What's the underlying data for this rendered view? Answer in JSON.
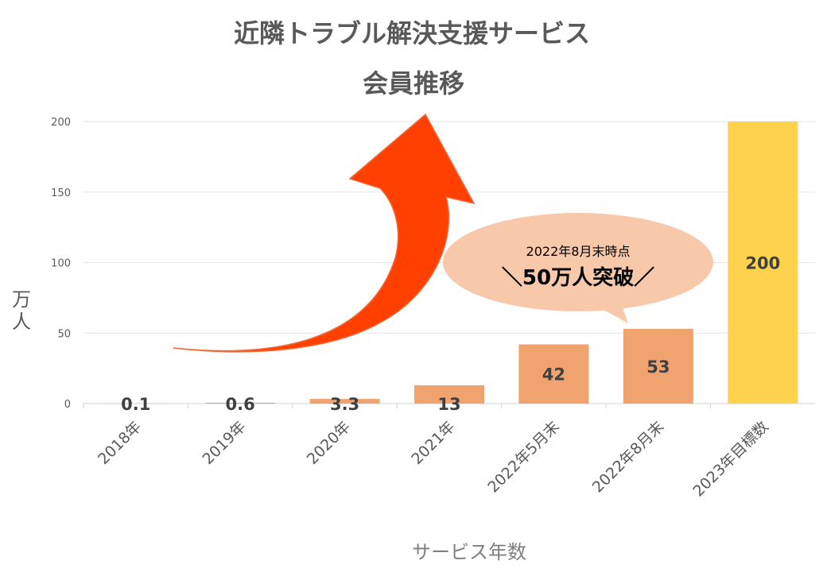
{
  "chart_data": {
    "type": "bar",
    "title_line1": "近隣トラブル解決支援サービス",
    "title_line2": "会員推移",
    "xlabel": "サービス年数",
    "ylabel": "万人",
    "categories": [
      "2018年",
      "2019年",
      "2020年",
      "2021年",
      "2022年5月末",
      "2022年8月末",
      "2023年目標数"
    ],
    "values": [
      0.1,
      0.6,
      3.3,
      13,
      42,
      53,
      200
    ],
    "data_labels": [
      "0.1",
      "0.6",
      "3.3",
      "13",
      "42",
      "53",
      "200"
    ],
    "bar_colors": [
      "#f0a26f",
      "#f0a26f",
      "#f0a26f",
      "#f0a26f",
      "#f0a26f",
      "#f0a26f",
      "#ffd24d"
    ],
    "ylim": [
      0,
      200
    ],
    "yticks": [
      0,
      50,
      100,
      150,
      200
    ],
    "grid": true,
    "annotation": {
      "line1": "2022年8月末時点",
      "line2": "＼50万人突破／",
      "bubble_color": "#f7c8aa"
    },
    "arrow_color": "#ff4000"
  }
}
